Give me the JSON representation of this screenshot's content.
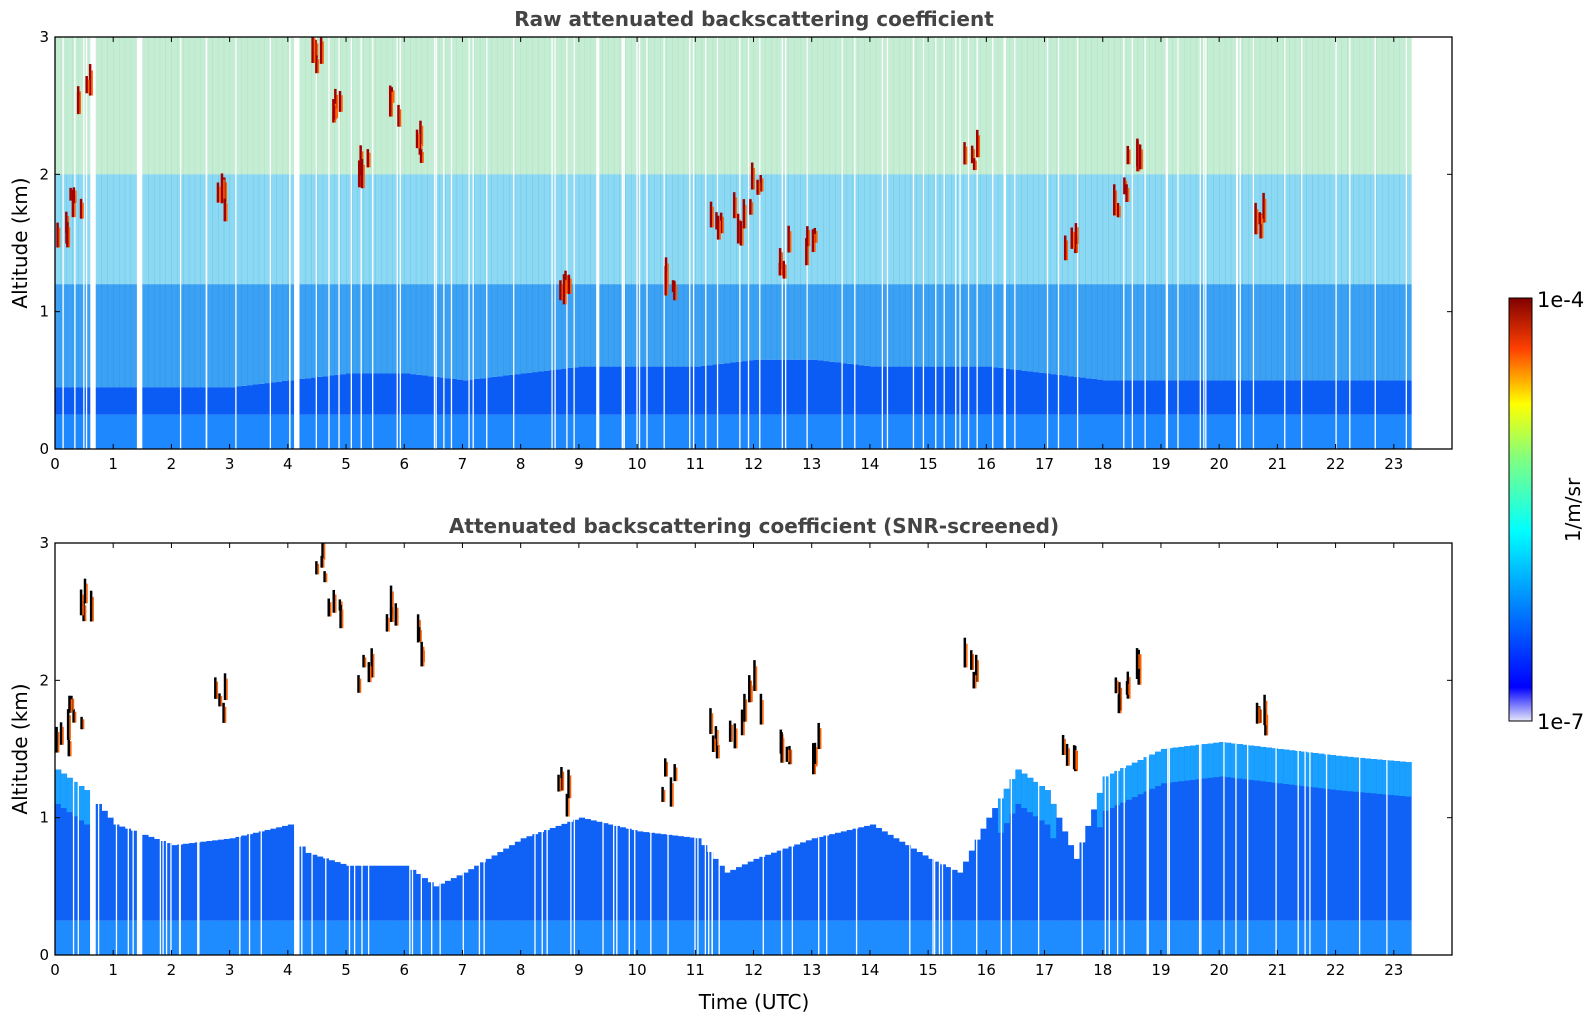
{
  "chart_data": [
    {
      "type": "heatmap",
      "title": "Raw attenuated backscattering coefficient",
      "xlabel": "",
      "ylabel": "Altitude (km)",
      "xlim": [
        0,
        24
      ],
      "ylim": [
        0,
        3
      ],
      "x_ticks": [
        "0",
        "1",
        "2",
        "3",
        "4",
        "5",
        "6",
        "7",
        "8",
        "9",
        "10",
        "11",
        "12",
        "13",
        "14",
        "15",
        "16",
        "17",
        "18",
        "19",
        "20",
        "21",
        "22",
        "23"
      ],
      "y_ticks": [
        "0",
        "1",
        "2",
        "3"
      ],
      "data_extent_hours": [
        0,
        23.3
      ],
      "data_gaps_hours": [
        [
          0.6,
          0.7
        ],
        [
          1.45,
          1.55
        ],
        [
          4.12,
          4.25
        ]
      ],
      "features": {
        "aerosol_layer_top_km": [
          [
            0,
            0.45
          ],
          [
            1,
            0.45
          ],
          [
            2,
            0.45
          ],
          [
            3,
            0.45
          ],
          [
            4,
            0.5
          ],
          [
            5,
            0.55
          ],
          [
            6,
            0.55
          ],
          [
            7,
            0.5
          ],
          [
            8,
            0.55
          ],
          [
            9,
            0.6
          ],
          [
            10,
            0.6
          ],
          [
            11,
            0.6
          ],
          [
            12,
            0.65
          ],
          [
            13,
            0.65
          ],
          [
            14,
            0.6
          ],
          [
            15,
            0.6
          ],
          [
            16,
            0.6
          ],
          [
            17,
            0.55
          ],
          [
            18,
            0.5
          ],
          [
            19,
            0.5
          ],
          [
            20,
            0.5
          ],
          [
            21,
            0.5
          ],
          [
            22,
            0.5
          ],
          [
            23,
            0.5
          ]
        ],
        "clouds": [
          {
            "time": 0.1,
            "alt_km": 1.45
          },
          {
            "time": 0.35,
            "alt_km": 1.7
          },
          {
            "time": 0.5,
            "alt_km": 2.5
          },
          {
            "time": 2.85,
            "alt_km": 1.75
          },
          {
            "time": 4.5,
            "alt_km": 2.8
          },
          {
            "time": 4.8,
            "alt_km": 2.5
          },
          {
            "time": 5.3,
            "alt_km": 2.0
          },
          {
            "time": 5.8,
            "alt_km": 2.4
          },
          {
            "time": 6.2,
            "alt_km": 2.2
          },
          {
            "time": 8.7,
            "alt_km": 1.1
          },
          {
            "time": 10.5,
            "alt_km": 1.2
          },
          {
            "time": 11.3,
            "alt_km": 1.5
          },
          {
            "time": 11.7,
            "alt_km": 1.6
          },
          {
            "time": 12.0,
            "alt_km": 1.8
          },
          {
            "time": 12.5,
            "alt_km": 1.35
          },
          {
            "time": 13.0,
            "alt_km": 1.4
          },
          {
            "time": 15.7,
            "alt_km": 2.05
          },
          {
            "time": 17.4,
            "alt_km": 1.45
          },
          {
            "time": 18.3,
            "alt_km": 1.8
          },
          {
            "time": 18.5,
            "alt_km": 2.0
          },
          {
            "time": 20.7,
            "alt_km": 1.65
          }
        ]
      }
    },
    {
      "type": "heatmap",
      "title": "Attenuated backscattering coefficient (SNR-screened)",
      "xlabel": "Time (UTC)",
      "ylabel": "Altitude (km)",
      "xlim": [
        0,
        24
      ],
      "ylim": [
        0,
        3
      ],
      "x_ticks": [
        "0",
        "1",
        "2",
        "3",
        "4",
        "5",
        "6",
        "7",
        "8",
        "9",
        "10",
        "11",
        "12",
        "13",
        "14",
        "15",
        "16",
        "17",
        "18",
        "19",
        "20",
        "21",
        "22",
        "23"
      ],
      "y_ticks": [
        "0",
        "1",
        "2",
        "3"
      ],
      "data_extent_hours": [
        0,
        23.3
      ],
      "data_gaps_hours": [
        [
          0.6,
          0.7
        ],
        [
          1.45,
          1.55
        ],
        [
          4.12,
          4.25
        ]
      ],
      "features": {
        "valid_signal_top_km": [
          [
            0,
            1.35
          ],
          [
            0.5,
            1.2
          ],
          [
            1,
            0.95
          ],
          [
            2,
            0.8
          ],
          [
            3,
            0.85
          ],
          [
            4,
            0.95
          ],
          [
            4.25,
            0.75
          ],
          [
            5,
            0.65
          ],
          [
            6,
            0.65
          ],
          [
            6.5,
            0.5
          ],
          [
            7,
            0.6
          ],
          [
            8,
            0.85
          ],
          [
            9,
            1.0
          ],
          [
            10,
            0.9
          ],
          [
            11,
            0.85
          ],
          [
            11.5,
            0.6
          ],
          [
            12,
            0.7
          ],
          [
            13,
            0.85
          ],
          [
            14,
            0.95
          ],
          [
            15,
            0.7
          ],
          [
            15.5,
            0.6
          ],
          [
            16,
            1.0
          ],
          [
            16.5,
            1.35
          ],
          [
            17,
            1.2
          ],
          [
            17.5,
            0.7
          ],
          [
            18,
            1.3
          ],
          [
            19,
            1.5
          ],
          [
            20,
            1.55
          ],
          [
            21,
            1.5
          ],
          [
            22,
            1.45
          ],
          [
            23.3,
            1.4
          ]
        ],
        "clouds": [
          {
            "time": 0.1,
            "alt_km": 1.45
          },
          {
            "time": 0.35,
            "alt_km": 1.7
          },
          {
            "time": 0.5,
            "alt_km": 2.5
          },
          {
            "time": 2.85,
            "alt_km": 1.75
          },
          {
            "time": 4.5,
            "alt_km": 2.8
          },
          {
            "time": 4.8,
            "alt_km": 2.5
          },
          {
            "time": 5.3,
            "alt_km": 2.0
          },
          {
            "time": 5.8,
            "alt_km": 2.4
          },
          {
            "time": 6.2,
            "alt_km": 2.2
          },
          {
            "time": 8.7,
            "alt_km": 1.1
          },
          {
            "time": 10.5,
            "alt_km": 1.2
          },
          {
            "time": 11.3,
            "alt_km": 1.5
          },
          {
            "time": 11.7,
            "alt_km": 1.6
          },
          {
            "time": 12.0,
            "alt_km": 1.8
          },
          {
            "time": 12.5,
            "alt_km": 1.35
          },
          {
            "time": 13.0,
            "alt_km": 1.4
          },
          {
            "time": 15.7,
            "alt_km": 2.05
          },
          {
            "time": 17.4,
            "alt_km": 1.45
          },
          {
            "time": 18.3,
            "alt_km": 1.8
          },
          {
            "time": 18.5,
            "alt_km": 2.0
          },
          {
            "time": 20.7,
            "alt_km": 1.65
          }
        ]
      }
    }
  ],
  "colorbar": {
    "label": "1/m/sr",
    "max_label": "1e-4",
    "min_label": "1e-7",
    "scale": "log",
    "colormap": "jet",
    "colors": [
      "#e6e6fa",
      "#0000ff",
      "#00a0ff",
      "#00ffff",
      "#ffff00",
      "#ff0000",
      "#800000"
    ]
  }
}
